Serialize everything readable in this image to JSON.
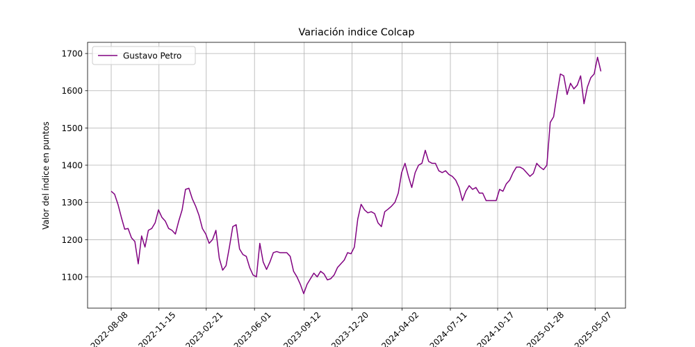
{
  "chart_data": {
    "type": "line",
    "title": "Variación indice Colcap",
    "ylabel": "Valor del índice en puntos",
    "x": [
      "2022-08-08",
      "2022-08-15",
      "2022-08-22",
      "2022-08-29",
      "2022-09-05",
      "2022-09-12",
      "2022-09-19",
      "2022-09-26",
      "2022-10-03",
      "2022-10-10",
      "2022-10-17",
      "2022-10-24",
      "2022-10-31",
      "2022-11-07",
      "2022-11-14",
      "2022-11-21",
      "2022-11-28",
      "2022-12-05",
      "2022-12-12",
      "2022-12-19",
      "2022-12-26",
      "2023-01-02",
      "2023-01-09",
      "2023-01-16",
      "2023-01-23",
      "2023-01-30",
      "2023-02-06",
      "2023-02-13",
      "2023-02-20",
      "2023-02-27",
      "2023-03-06",
      "2023-03-13",
      "2023-03-20",
      "2023-03-27",
      "2023-04-03",
      "2023-04-10",
      "2023-04-17",
      "2023-04-24",
      "2023-05-01",
      "2023-05-08",
      "2023-05-15",
      "2023-05-22",
      "2023-05-29",
      "2023-06-05",
      "2023-06-12",
      "2023-06-19",
      "2023-06-26",
      "2023-07-03",
      "2023-07-10",
      "2023-07-17",
      "2023-07-24",
      "2023-07-31",
      "2023-08-07",
      "2023-08-14",
      "2023-08-21",
      "2023-08-28",
      "2023-09-04",
      "2023-09-11",
      "2023-09-18",
      "2023-09-25",
      "2023-10-02",
      "2023-10-09",
      "2023-10-16",
      "2023-10-23",
      "2023-10-30",
      "2023-11-06",
      "2023-11-13",
      "2023-11-20",
      "2023-11-27",
      "2023-12-04",
      "2023-12-11",
      "2023-12-18",
      "2023-12-25",
      "2024-01-01",
      "2024-01-08",
      "2024-01-15",
      "2024-01-22",
      "2024-01-29",
      "2024-02-05",
      "2024-02-12",
      "2024-02-19",
      "2024-02-26",
      "2024-03-04",
      "2024-03-11",
      "2024-03-18",
      "2024-03-25",
      "2024-04-01",
      "2024-04-08",
      "2024-04-15",
      "2024-04-22",
      "2024-04-29",
      "2024-05-06",
      "2024-05-13",
      "2024-05-20",
      "2024-05-27",
      "2024-06-03",
      "2024-06-10",
      "2024-06-17",
      "2024-06-24",
      "2024-07-01",
      "2024-07-08",
      "2024-07-15",
      "2024-07-22",
      "2024-07-29",
      "2024-08-05",
      "2024-08-12",
      "2024-08-19",
      "2024-08-26",
      "2024-09-02",
      "2024-09-09",
      "2024-09-16",
      "2024-09-23",
      "2024-09-30",
      "2024-10-07",
      "2024-10-14",
      "2024-10-21",
      "2024-10-28",
      "2024-11-04",
      "2024-11-11",
      "2024-11-18",
      "2024-11-25",
      "2024-12-02",
      "2024-12-09",
      "2024-12-16",
      "2024-12-23",
      "2024-12-30",
      "2025-01-06",
      "2025-01-13",
      "2025-01-20",
      "2025-01-27",
      "2025-02-03",
      "2025-02-10",
      "2025-02-17",
      "2025-02-24",
      "2025-03-03",
      "2025-03-10",
      "2025-03-17",
      "2025-03-24",
      "2025-03-31",
      "2025-04-07",
      "2025-04-14",
      "2025-04-21",
      "2025-04-28",
      "2025-05-05",
      "2025-05-12",
      "2025-05-19"
    ],
    "series": [
      {
        "name": "Gustavo Petro",
        "color": "#800080",
        "values": [
          1330,
          1322,
          1295,
          1260,
          1228,
          1230,
          1205,
          1195,
          1135,
          1210,
          1180,
          1225,
          1230,
          1245,
          1280,
          1260,
          1250,
          1230,
          1225,
          1215,
          1250,
          1280,
          1335,
          1338,
          1310,
          1290,
          1265,
          1230,
          1215,
          1190,
          1200,
          1225,
          1150,
          1118,
          1130,
          1180,
          1235,
          1240,
          1175,
          1160,
          1155,
          1125,
          1105,
          1100,
          1190,
          1140,
          1120,
          1140,
          1165,
          1168,
          1165,
          1165,
          1165,
          1155,
          1115,
          1100,
          1080,
          1055,
          1080,
          1095,
          1110,
          1100,
          1115,
          1108,
          1092,
          1095,
          1105,
          1125,
          1135,
          1145,
          1165,
          1162,
          1180,
          1255,
          1295,
          1280,
          1272,
          1275,
          1270,
          1245,
          1235,
          1275,
          1282,
          1290,
          1300,
          1325,
          1380,
          1405,
          1370,
          1340,
          1380,
          1400,
          1405,
          1440,
          1410,
          1405,
          1405,
          1385,
          1380,
          1385,
          1375,
          1370,
          1360,
          1340,
          1305,
          1330,
          1345,
          1335,
          1340,
          1325,
          1325,
          1305,
          1305,
          1305,
          1305,
          1335,
          1330,
          1350,
          1360,
          1380,
          1395,
          1395,
          1390,
          1380,
          1370,
          1378,
          1405,
          1395,
          1388,
          1400,
          1515,
          1530,
          1590,
          1645,
          1640,
          1590,
          1620,
          1605,
          1615,
          1640,
          1565,
          1610,
          1635,
          1645,
          1690,
          1652
        ]
      }
    ],
    "xlim": [
      "2022-06-20",
      "2025-07-09"
    ],
    "xticks": [
      "2022-08-08",
      "2022-11-15",
      "2023-02-21",
      "2023-06-01",
      "2023-09-12",
      "2023-12-20",
      "2024-04-02",
      "2024-07-11",
      "2024-10-17",
      "2025-01-28",
      "2025-05-07"
    ],
    "ylim": [
      1016,
      1730
    ],
    "yticks": [
      1100,
      1200,
      1300,
      1400,
      1500,
      1600,
      1700
    ],
    "grid": true,
    "legend": "upper left"
  }
}
